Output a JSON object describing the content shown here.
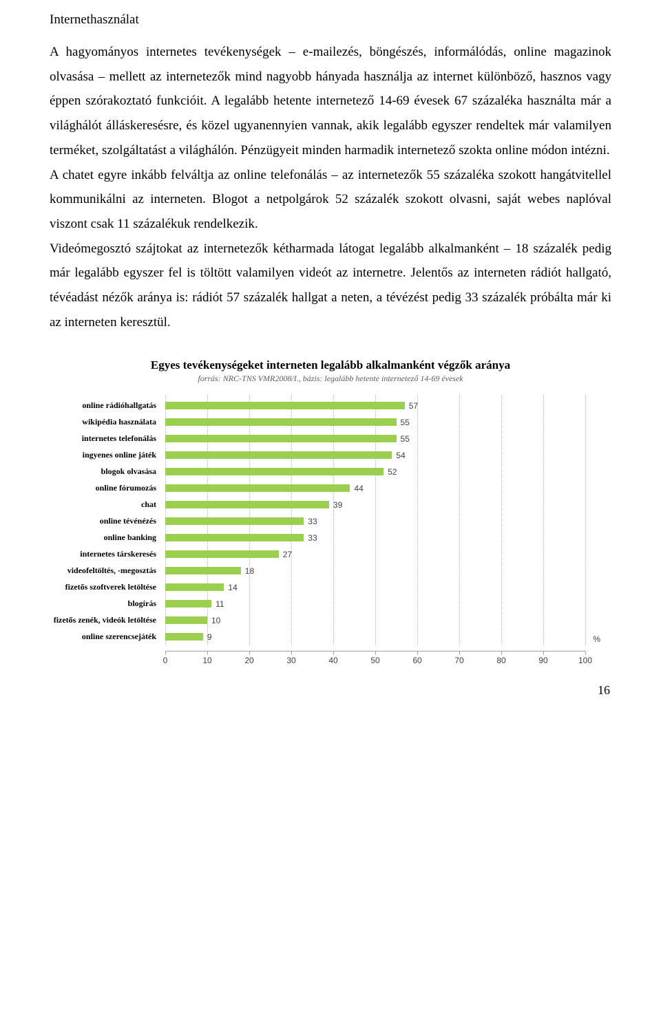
{
  "heading": "Internethasználat",
  "para1": "A hagyományos internetes tevékenységek – e-mailezés, böngészés, informálódás, online magazinok olvasása – mellett az internetezők mind nagyobb hányada használja az internet különböző, hasznos vagy éppen szórakoztató funkcióit. A legalább hetente internetező 14-69 évesek 67 százaléka használta már a világhálót álláskeresésre, és közel ugyanennyien vannak, akik legalább egyszer rendeltek már valamilyen terméket, szolgáltatást a világhálón. Pénzügyeit minden harmadik internetező szokta online módon intézni.",
  "para2": "A chatet egyre inkább felváltja az online telefonálás – az internetezők 55 százaléka szokott hangátvitellel kommunikálni az interneten. Blogot a netpolgárok 52 százalék szokott olvasni, saját webes naplóval viszont csak 11 százalékuk rendelkezik.",
  "para3": "Videómegosztó szájtokat az internetezők kétharmada látogat legalább alkalmanként – 18 százalék pedig már legalább egyszer fel is töltött valamilyen videót az internetre. Jelentős az interneten rádiót hallgató, tévéadást nézők aránya is: rádiót 57 százalék hallgat a neten, a tévézést pedig 33 százalék próbálta már ki az interneten keresztül.",
  "chart": {
    "title": "Egyes tevékenységeket interneten legalább alkalmanként végzők aránya",
    "subtitle": "forrás: NRC-TNS VMR2008/I., bázis: legalább hetente internetező 14-69 évesek",
    "type": "bar",
    "bar_color": "#9ccf4f",
    "background_color": "#ffffff",
    "grid_color": "#b8b8b8",
    "axis_color": "#a0a0a0",
    "value_color": "#404040",
    "xlim": [
      0,
      100
    ],
    "xtick_step": 10,
    "unit_label": "%",
    "categories": [
      "online rádióhallgatás",
      "wikipédia használata",
      "internetes telefonálás",
      "ingyenes online játék",
      "blogok olvasása",
      "online fórumozás",
      "chat",
      "online tévénézés",
      "online banking",
      "internetes társkeresés",
      "videofeltöltés, -megosztás",
      "fizetős szoftverek letöltése",
      "blogírás",
      "fizetős zenék, videók letöltése",
      "online szerencsejáték"
    ],
    "values": [
      57,
      55,
      55,
      54,
      52,
      44,
      39,
      33,
      33,
      27,
      18,
      14,
      11,
      10,
      9
    ],
    "xticks": [
      0,
      10,
      20,
      30,
      40,
      50,
      60,
      70,
      80,
      90,
      100
    ]
  },
  "page_number": "16"
}
